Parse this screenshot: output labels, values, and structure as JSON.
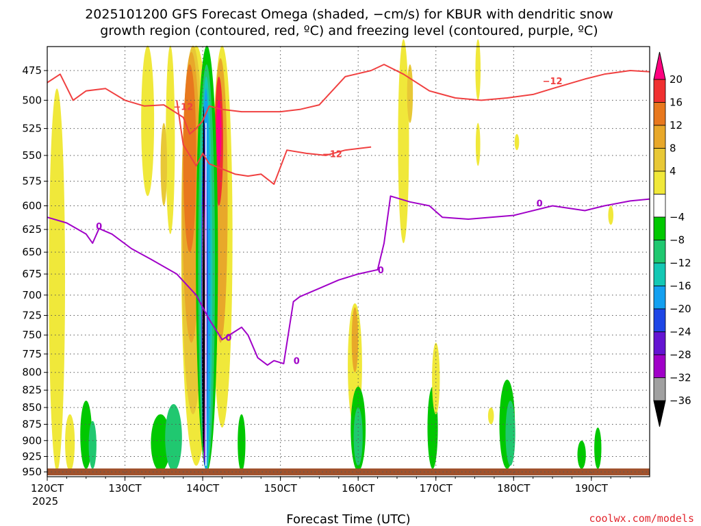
{
  "title_line1": "2025101200 GFS Forecast Omega (shaded, −cm/s) for KBUR with dendritic snow",
  "title_line2": "growth region (contoured, red, ºC) and freezing level (contoured, purple, ºC)",
  "credit": "coolwx.com/models",
  "chart_data": {
    "type": "heatmap",
    "title": "2025101200 GFS Forecast Omega (shaded, −cm/s) for KBUR with dendritic snow growth region (contoured, red, ºC) and freezing level (contoured, purple, ºC)",
    "xlabel": "Forecast Time (UTC)",
    "ylabel": "Pressure (hPa)",
    "x_tick_labels": [
      "120CT",
      "130CT",
      "140CT",
      "150CT",
      "160CT",
      "170CT",
      "180CT",
      "190CT"
    ],
    "x_tick_hours": [
      0,
      24,
      48,
      72,
      96,
      120,
      144,
      168
    ],
    "x_sublabel": "2025",
    "xlim_hours": [
      0,
      186
    ],
    "y_tick_labels": [
      "475",
      "500",
      "525",
      "550",
      "575",
      "600",
      "625",
      "650",
      "675",
      "700",
      "725",
      "750",
      "775",
      "800",
      "825",
      "850",
      "875",
      "900",
      "925",
      "950"
    ],
    "ylim_hpa": [
      450,
      955
    ],
    "colorbar": {
      "labels": [
        "20",
        "16",
        "12",
        "8",
        "4",
        "−4",
        "−8",
        "−12",
        "−16",
        "−20",
        "−24",
        "−28",
        "−32",
        "−36"
      ],
      "colors": [
        "#ff007f",
        "#f03030",
        "#e8781e",
        "#e8a82a",
        "#e8c836",
        "#f0e83a",
        "#ffffff",
        "#00c800",
        "#20c870",
        "#14c8b4",
        "#14a0f0",
        "#1e46e6",
        "#6414d2",
        "#a000c8",
        "#a0a0a0",
        "#000000"
      ]
    },
    "freezing_level_0C": {
      "color": "#a000c8",
      "label": "0",
      "points": [
        [
          0,
          612
        ],
        [
          6,
          618
        ],
        [
          12,
          630
        ],
        [
          14,
          640
        ],
        [
          16,
          624
        ],
        [
          20,
          630
        ],
        [
          26,
          646
        ],
        [
          32,
          658
        ],
        [
          40,
          675
        ],
        [
          46,
          700
        ],
        [
          50,
          730
        ],
        [
          54,
          756
        ],
        [
          57,
          748
        ],
        [
          60,
          740
        ],
        [
          62,
          750
        ],
        [
          65,
          780
        ],
        [
          68,
          790
        ],
        [
          70,
          784
        ],
        [
          73,
          788
        ],
        [
          76,
          708
        ],
        [
          78,
          702
        ],
        [
          84,
          692
        ],
        [
          90,
          682
        ],
        [
          96,
          675
        ],
        [
          102,
          670
        ],
        [
          104,
          640
        ],
        [
          106,
          590
        ],
        [
          112,
          596
        ],
        [
          118,
          600
        ],
        [
          122,
          612
        ],
        [
          130,
          614
        ],
        [
          144,
          610
        ],
        [
          156,
          600
        ],
        [
          166,
          605
        ],
        [
          172,
          600
        ],
        [
          180,
          595
        ],
        [
          186,
          593
        ]
      ]
    },
    "dgz_upper_minus12": {
      "color": "#f04040",
      "label": "−12",
      "points": [
        [
          0,
          485
        ],
        [
          4,
          478
        ],
        [
          8,
          500
        ],
        [
          12,
          492
        ],
        [
          18,
          490
        ],
        [
          24,
          500
        ],
        [
          30,
          505
        ],
        [
          36,
          504
        ],
        [
          42,
          515
        ],
        [
          44,
          530
        ],
        [
          46,
          525
        ],
        [
          48,
          518
        ],
        [
          50,
          505
        ],
        [
          54,
          508
        ],
        [
          60,
          510
        ],
        [
          66,
          510
        ],
        [
          72,
          510
        ],
        [
          78,
          508
        ],
        [
          84,
          504
        ],
        [
          92,
          480
        ],
        [
          100,
          475
        ],
        [
          104,
          470
        ],
        [
          110,
          478
        ],
        [
          118,
          492
        ],
        [
          126,
          498
        ],
        [
          134,
          500
        ],
        [
          142,
          498
        ],
        [
          150,
          495
        ],
        [
          156,
          490
        ],
        [
          166,
          482
        ],
        [
          172,
          478
        ],
        [
          180,
          475
        ],
        [
          186,
          476
        ]
      ]
    },
    "dgz_lower_minus12": {
      "color": "#f04040",
      "label": "−12",
      "points": [
        [
          40,
          500
        ],
        [
          42,
          540
        ],
        [
          46,
          560
        ],
        [
          48,
          548
        ],
        [
          50,
          558
        ],
        [
          54,
          563
        ],
        [
          58,
          568
        ],
        [
          62,
          570
        ],
        [
          66,
          568
        ],
        [
          70,
          578
        ],
        [
          74,
          545
        ],
        [
          80,
          548
        ],
        [
          86,
          550
        ],
        [
          92,
          545
        ],
        [
          100,
          542
        ]
      ]
    },
    "annotations": [
      {
        "text": "−12",
        "hour": 156,
        "hpa": 484
      },
      {
        "text": "−12",
        "hour": 88,
        "hpa": 549
      },
      {
        "text": "−12",
        "hour": 42,
        "hpa": 506
      },
      {
        "text": "0",
        "hour": 16,
        "hpa": 622
      },
      {
        "text": "0",
        "hour": 103,
        "hpa": 671
      },
      {
        "text": "0",
        "hour": 152,
        "hpa": 598
      },
      {
        "text": "0",
        "hour": 56,
        "hpa": 754
      },
      {
        "text": "0",
        "hour": 77,
        "hpa": 785
      }
    ]
  }
}
